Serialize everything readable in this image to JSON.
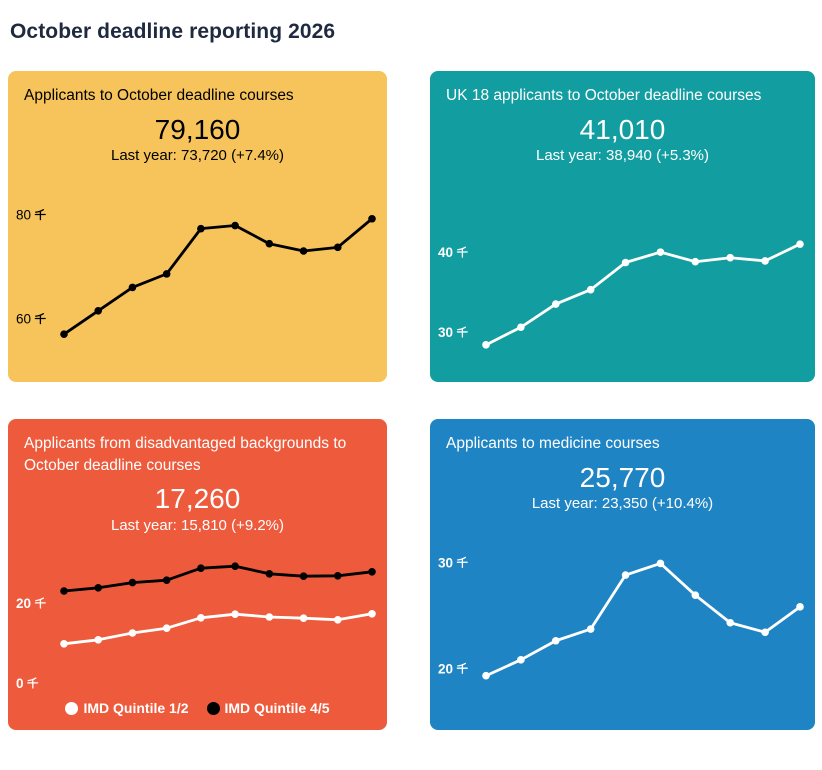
{
  "page": {
    "title": "October deadline reporting 2026"
  },
  "colors": {
    "page_title": "#1F2A40",
    "card_yellow": "#F6C45A",
    "card_teal": "#129DA0",
    "card_red": "#EE5A3C",
    "card_blue": "#1F84C4",
    "line_black": "#000000",
    "line_white": "#FFFFFF"
  },
  "cards": [
    {
      "id": "applicants-october",
      "title": "Applicants to October deadline courses",
      "value": "79,160",
      "last_year": "Last year: 73,720 (+7.4%)",
      "background": "#F6C45A",
      "text_color": "#000000"
    },
    {
      "id": "uk18-applicants",
      "title": "UK 18 applicants to October deadline courses",
      "value": "41,010",
      "last_year": "Last year: 38,940 (+5.3%)",
      "background": "#129DA0",
      "text_color": "#FFFFFF"
    },
    {
      "id": "disadvantaged-applicants",
      "title": "Applicants from disadvantaged backgrounds to October deadline courses",
      "value": "17,260",
      "last_year": "Last year: 15,810 (+9.2%)",
      "background": "#EE5A3C",
      "text_color": "#FFFFFF"
    },
    {
      "id": "medicine-applicants",
      "title": "Applicants to medicine courses",
      "value": "25,770",
      "last_year": "Last year: 23,350 (+10.4%)",
      "background": "#1F84C4",
      "text_color": "#FFFFFF"
    }
  ],
  "chart_data": [
    {
      "type": "line",
      "title": "Applicants to October deadline courses",
      "headline_value": 79160,
      "last_year_value": 73720,
      "change_pct": "+7.4%",
      "y_unit": "thousands (千)",
      "grid": false,
      "axis_color": "#000000",
      "yticks": [
        {
          "value": 80,
          "label": "80 千"
        },
        {
          "value": 60,
          "label": "60 千"
        }
      ],
      "ylim": [
        50.5,
        88
      ],
      "series": [
        {
          "name": "Applicants",
          "color": "#000000",
          "values": [
            57.0,
            61.5,
            66.0,
            68.6,
            77.3,
            77.9,
            74.4,
            73.0,
            73.7,
            79.2
          ]
        }
      ]
    },
    {
      "type": "line",
      "title": "UK 18 applicants to October deadline courses",
      "headline_value": 41010,
      "last_year_value": 38940,
      "change_pct": "+5.3%",
      "y_unit": "thousands (千)",
      "grid": false,
      "axis_color": "#FFFFFF",
      "yticks": [
        {
          "value": 40,
          "label": "40 千"
        },
        {
          "value": 30,
          "label": "30 千"
        }
      ],
      "ylim": [
        25.5,
        49.9
      ],
      "series": [
        {
          "name": "UK 18 applicants",
          "color": "#FFFFFF",
          "values": [
            28.4,
            30.6,
            33.5,
            35.3,
            38.7,
            40.0,
            38.8,
            39.3,
            38.9,
            41.0
          ]
        }
      ]
    },
    {
      "type": "line",
      "title": "Applicants from disadvantaged backgrounds to October deadline courses",
      "headline_value": 17260,
      "last_year_value": 15810,
      "change_pct": "+9.2%",
      "y_unit": "thousands (千)",
      "grid": false,
      "legend_position": "bottom-center",
      "axis_color": "#FFFFFF",
      "yticks": [
        {
          "value": 20,
          "label": "20 千"
        },
        {
          "value": 0,
          "label": "0 千"
        }
      ],
      "ylim": [
        -2.75,
        36
      ],
      "series": [
        {
          "name": "IMD Quintile 1/2",
          "color": "#FFFFFF",
          "values": [
            9.8,
            10.8,
            12.5,
            13.7,
            16.3,
            17.2,
            16.5,
            16.2,
            15.8,
            17.3
          ]
        },
        {
          "name": "IMD Quintile 4/5",
          "color": "#000000",
          "values": [
            23.0,
            23.8,
            25.1,
            25.7,
            28.7,
            29.2,
            27.3,
            26.7,
            26.8,
            27.8
          ]
        }
      ]
    },
    {
      "type": "line",
      "title": "Applicants to medicine courses",
      "headline_value": 25770,
      "last_year_value": 23350,
      "change_pct": "+10.4%",
      "y_unit": "thousands (千)",
      "grid": false,
      "axis_color": "#FFFFFF",
      "yticks": [
        {
          "value": 30,
          "label": "30 千"
        },
        {
          "value": 20,
          "label": "20 千"
        }
      ],
      "ylim": [
        15.5,
        33.9
      ],
      "series": [
        {
          "name": "Medicine applicants",
          "color": "#FFFFFF",
          "values": [
            19.3,
            20.8,
            22.6,
            23.7,
            28.8,
            29.9,
            26.9,
            24.3,
            23.4,
            25.8
          ]
        }
      ]
    }
  ]
}
